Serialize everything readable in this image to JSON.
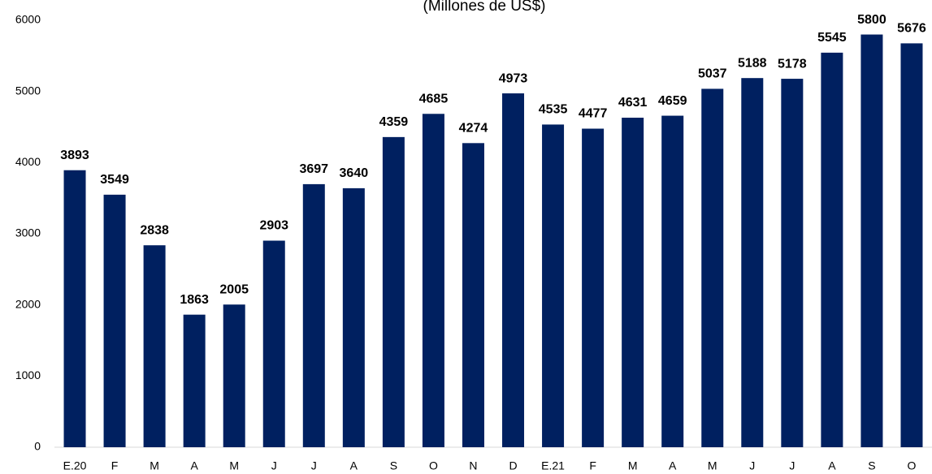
{
  "chart_data": {
    "type": "bar",
    "subtitle": "(Millones de US$)",
    "categories": [
      "E.20",
      "F",
      "M",
      "A",
      "M",
      "J",
      "J",
      "A",
      "S",
      "O",
      "N",
      "D",
      "E.21",
      "F",
      "M",
      "A",
      "M",
      "J",
      "J",
      "A",
      "S",
      "O"
    ],
    "values": [
      3893,
      3549,
      2838,
      1863,
      2005,
      2903,
      3697,
      3640,
      4359,
      4685,
      4274,
      4973,
      4535,
      4477,
      4631,
      4659,
      5037,
      5188,
      5178,
      5545,
      5800,
      5676
    ],
    "color": "#002060",
    "ylim": [
      0,
      6000
    ],
    "yticks": [
      0,
      1000,
      2000,
      3000,
      4000,
      5000,
      6000
    ],
    "grid": false
  }
}
